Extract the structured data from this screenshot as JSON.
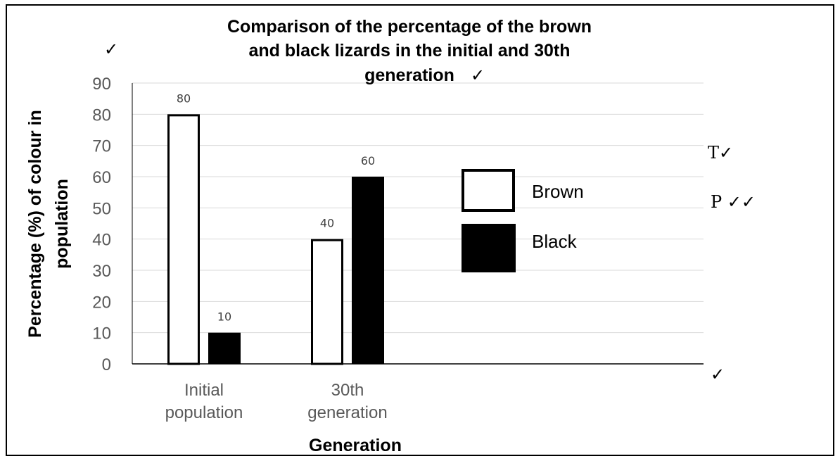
{
  "chart_data": {
    "type": "bar",
    "title_lines": [
      "Comparison of the percentage of the brown",
      "and black lizards in the initial and 30th",
      "generation"
    ],
    "xlabel": "Generation",
    "ylabel_lines": [
      "Percentage (%)  of colour in",
      "population"
    ],
    "categories": [
      [
        "Initial",
        "population"
      ],
      [
        "30th",
        "generation"
      ]
    ],
    "series": [
      {
        "name": "Brown",
        "values": [
          80,
          40
        ],
        "fill": "#ffffff",
        "stroke": "#000000"
      },
      {
        "name": "Black",
        "values": [
          10,
          60
        ],
        "fill": "#000000",
        "stroke": "#000000"
      }
    ],
    "ylim": [
      0,
      90
    ],
    "yticks": [
      0,
      10,
      20,
      30,
      40,
      50,
      60,
      70,
      80,
      90
    ],
    "grid": true,
    "legend_position": "right"
  },
  "marks": {
    "title_tick": "✓",
    "top_left": "✓",
    "t_mark": "T✓",
    "p_mark": "P ✓✓",
    "bottom_right": "✓"
  }
}
